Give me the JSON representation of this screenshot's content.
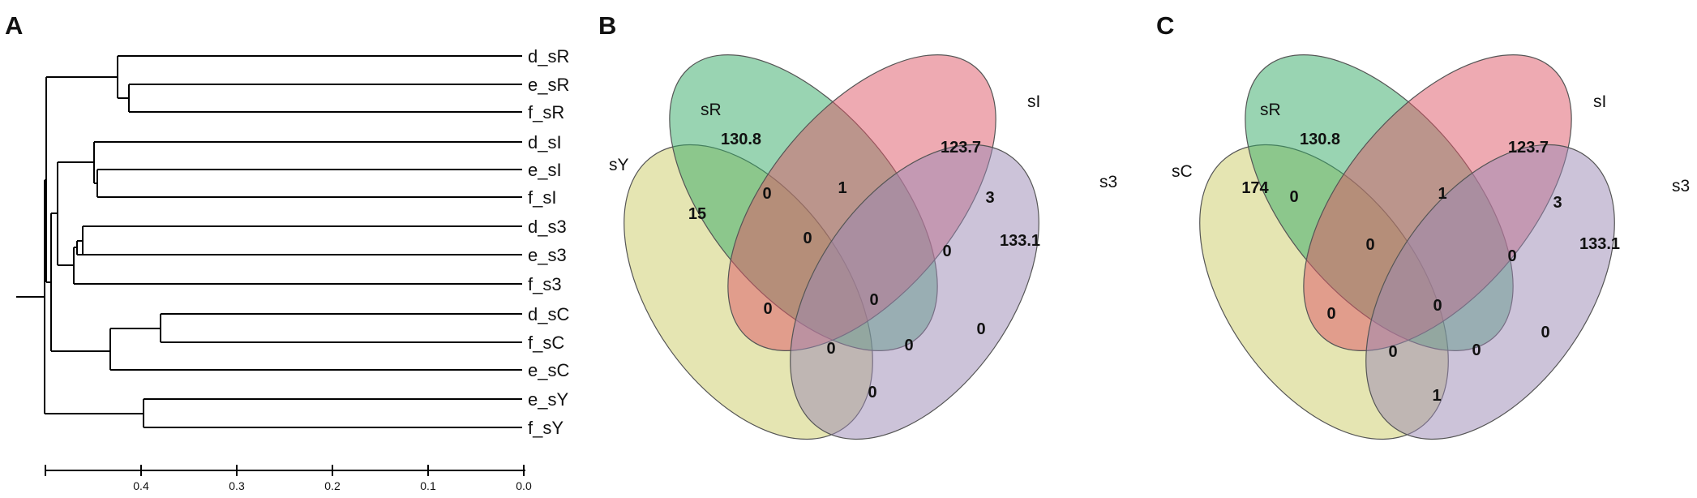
{
  "panels": {
    "a": "A",
    "b": "B",
    "c": "C"
  },
  "dendrogram": {
    "leaves": [
      "d_sR",
      "e_sR",
      "f_sR",
      "d_sI",
      "e_sI",
      "f_sI",
      "d_s3",
      "e_s3",
      "f_s3",
      "d_sC",
      "f_sC",
      "e_sC",
      "e_sY",
      "f_sY"
    ],
    "ticks": [
      "0.4",
      "0.3",
      "0.2",
      "0.1",
      "0.0"
    ]
  },
  "venn_b": {
    "sets": [
      "sY",
      "sR",
      "sI",
      "s3"
    ],
    "values": {
      "y_only": "15",
      "r_only": "130.8",
      "i_only": "123.7",
      "t_only": "133.1",
      "ri": "1",
      "it": "3",
      "yr": "0",
      "rt": "0",
      "rit": "0",
      "yri": "0",
      "yi": "0",
      "all": "0",
      "yrt": "0",
      "yit": "0",
      "yt": "0"
    }
  },
  "venn_c": {
    "sets": [
      "sC",
      "sR",
      "sI",
      "s3"
    ],
    "values": {
      "y_only": "174",
      "r_only": "130.8",
      "i_only": "123.7",
      "t_only": "133.1",
      "ri": "1",
      "it": "3",
      "yr": "0",
      "rt": "0",
      "rit": "0",
      "yri": "0",
      "yi": "0",
      "all": "0",
      "yrt": "0",
      "yit": "0",
      "yt": "1"
    }
  },
  "colors": {
    "yellow": "#cccc66",
    "green": "#33aa66",
    "red": "#dd5566",
    "purple": "#9988b3"
  }
}
